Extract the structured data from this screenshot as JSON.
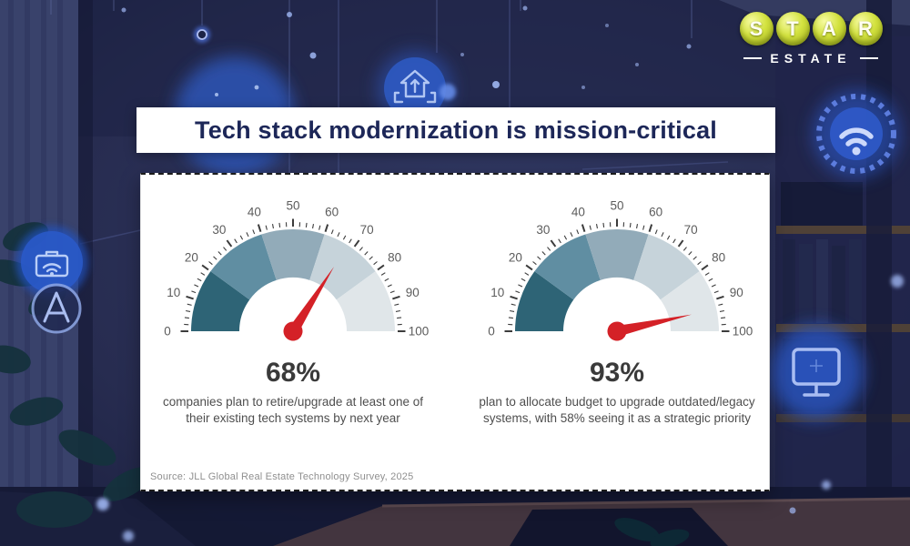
{
  "header": {
    "title": "Tech stack modernization is mission-critical"
  },
  "logo": {
    "brand_top": "STAR",
    "brand_bottom": "ESTATE",
    "bubble_color": "#c3d336",
    "text_color": "#ffffff"
  },
  "card": {
    "source_note": "Source: JLL Global Real Estate Technology Survey, 2025"
  },
  "chart_data": [
    {
      "type": "gauge",
      "value": 68,
      "value_label": "68%",
      "description": "companies plan to retire/upgrade at least one of their existing tech systems by next year",
      "axis": {
        "min": 0,
        "max": 100,
        "tick_labels": [
          0,
          10,
          20,
          30,
          40,
          50,
          60,
          70,
          80,
          90,
          100
        ],
        "minor_tick_step": 2
      },
      "segments": [
        {
          "from": 0,
          "to": 20,
          "color": "#2e6476"
        },
        {
          "from": 20,
          "to": 40,
          "color": "#608ea2"
        },
        {
          "from": 40,
          "to": 60,
          "color": "#92abb9"
        },
        {
          "from": 60,
          "to": 80,
          "color": "#c6d3da"
        },
        {
          "from": 80,
          "to": 100,
          "color": "#e0e6e9"
        }
      ],
      "needle_color": "#d42127",
      "tick_color": "#3c3c3c",
      "label_color": "#5c5c5c"
    },
    {
      "type": "gauge",
      "value": 93,
      "value_label": "93%",
      "description": "plan to allocate budget to upgrade outdated/legacy systems, with 58% seeing it as a strategic priority",
      "axis": {
        "min": 0,
        "max": 100,
        "tick_labels": [
          0,
          10,
          20,
          30,
          40,
          50,
          60,
          70,
          80,
          90,
          100
        ],
        "minor_tick_step": 2
      },
      "segments": [
        {
          "from": 0,
          "to": 20,
          "color": "#2e6476"
        },
        {
          "from": 20,
          "to": 40,
          "color": "#608ea2"
        },
        {
          "from": 40,
          "to": 60,
          "color": "#92abb9"
        },
        {
          "from": 60,
          "to": 80,
          "color": "#c6d3da"
        },
        {
          "from": 80,
          "to": 100,
          "color": "#e0e6e9"
        }
      ],
      "needle_color": "#d42127",
      "tick_color": "#3c3c3c",
      "label_color": "#5c5c5c"
    }
  ],
  "background": {
    "icons": [
      "wifi-icon",
      "house-arrow-up-icon",
      "briefcase-wifi-icon",
      "letter-a-badge-icon",
      "monitor-icon",
      "hanging-light-icon"
    ],
    "base_color": "#272c50",
    "glow_color": "#2b57c4"
  }
}
